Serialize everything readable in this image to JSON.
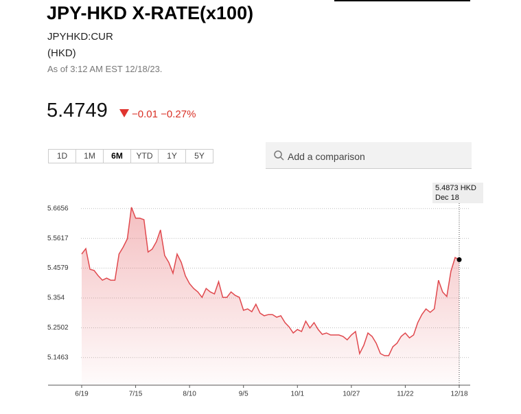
{
  "header": {
    "title": "JPY-HKD X-RATE(x100)",
    "ticker": "JPYHKD:CUR",
    "currency": "(HKD)",
    "as_of": "As of 3:12 AM EST 12/18/23.",
    "price": "5.4749",
    "change": "−0.01",
    "change_pct": "−0.27%"
  },
  "ranges": {
    "buttons": [
      "1D",
      "1M",
      "6M",
      "YTD",
      "1Y",
      "5Y"
    ],
    "selected": "6M"
  },
  "search": {
    "placeholder": "Add a comparison"
  },
  "chart_data": {
    "type": "line",
    "color": "#e0484d",
    "grid": true,
    "categories": [
      "6/19",
      null,
      null,
      null,
      null,
      null,
      null,
      null,
      null,
      null,
      null,
      null,
      null,
      "7/15",
      null,
      null,
      null,
      null,
      null,
      null,
      null,
      null,
      null,
      null,
      null,
      null,
      "8/10",
      null,
      null,
      null,
      null,
      null,
      null,
      null,
      null,
      null,
      null,
      null,
      null,
      "9/5",
      null,
      null,
      null,
      null,
      null,
      null,
      null,
      null,
      null,
      null,
      null,
      null,
      "10/1",
      null,
      null,
      null,
      null,
      null,
      null,
      null,
      null,
      null,
      null,
      null,
      null,
      "10/27",
      null,
      null,
      null,
      null,
      null,
      null,
      null,
      null,
      null,
      null,
      null,
      null,
      "11/22",
      null,
      null,
      null,
      null,
      null,
      null,
      null,
      null,
      null,
      null,
      null,
      null,
      "12/18"
    ],
    "values": [
      5.507,
      5.526,
      5.454,
      5.45,
      5.431,
      5.416,
      5.423,
      5.416,
      5.416,
      5.507,
      5.531,
      5.56,
      5.67,
      5.632,
      5.632,
      5.627,
      5.514,
      5.524,
      5.55,
      5.591,
      5.502,
      5.478,
      5.44,
      5.507,
      5.478,
      5.431,
      5.404,
      5.387,
      5.375,
      5.356,
      5.387,
      5.375,
      5.368,
      5.411,
      5.356,
      5.356,
      5.375,
      5.363,
      5.356,
      5.311,
      5.316,
      5.306,
      5.332,
      5.301,
      5.292,
      5.296,
      5.296,
      5.287,
      5.292,
      5.268,
      5.253,
      5.232,
      5.244,
      5.237,
      5.273,
      5.249,
      5.268,
      5.244,
      5.227,
      5.232,
      5.225,
      5.225,
      5.225,
      5.22,
      5.208,
      5.225,
      5.237,
      5.16,
      5.189,
      5.232,
      5.22,
      5.196,
      5.16,
      5.153,
      5.153,
      5.184,
      5.196,
      5.22,
      5.232,
      5.215,
      5.225,
      5.268,
      5.296,
      5.316,
      5.304,
      5.316,
      5.416,
      5.375,
      5.359,
      5.447,
      5.495,
      5.4873
    ],
    "ylim": [
      5.05,
      5.7
    ],
    "yticks": [
      5.1463,
      5.2502,
      5.354,
      5.4579,
      5.5617,
      5.6656
    ],
    "tooltip": {
      "value_label": "5.4873 HKD",
      "date": "Dec 18"
    }
  }
}
